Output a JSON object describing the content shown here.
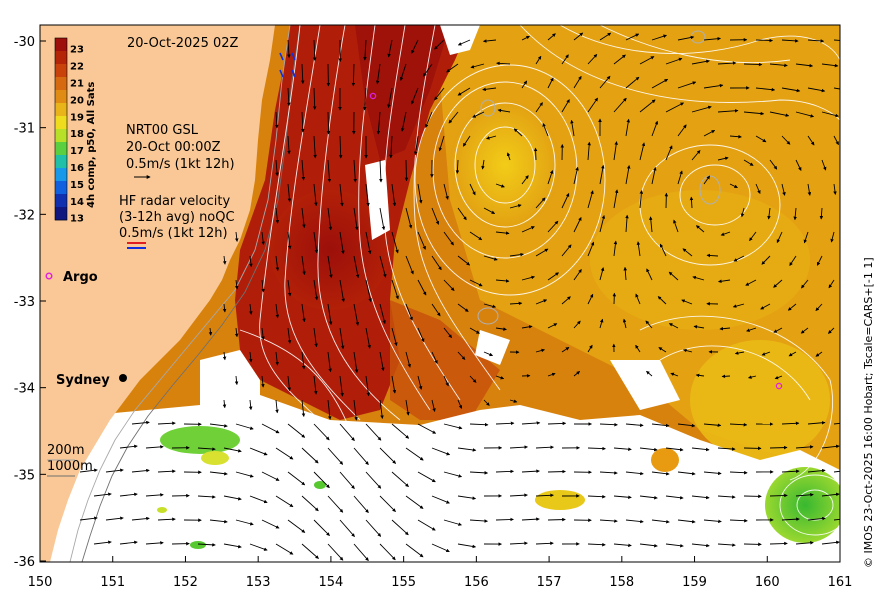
{
  "map": {
    "date_label": "20-Oct-2025 02Z",
    "colorbar": {
      "title": "4h comp, p50, All Sats",
      "ticks": [
        "23",
        "22",
        "21",
        "20",
        "19",
        "18",
        "17",
        "16",
        "15",
        "14",
        "13"
      ],
      "colors": [
        "#9c0f0a",
        "#b42508",
        "#c8420a",
        "#d66a10",
        "#e08c14",
        "#e8b41a",
        "#f0dc1e",
        "#b8e028",
        "#5ad040",
        "#20c0a8",
        "#1898e8",
        "#1060e0",
        "#1030b0",
        "#101880"
      ]
    },
    "gsl": {
      "line1": "NRT00 GSL",
      "line2": "20-Oct 00:00Z",
      "line3": "0.5m/s (1kt 12h)"
    },
    "hf_radar": {
      "line1": "HF radar velocity",
      "line2": "(3-12h avg) noQC",
      "line3": "0.5m/s (1kt 12h)"
    },
    "argo_label": "Argo",
    "sydney_label": "Sydney",
    "depth_200": "200m",
    "depth_1000": "1000m",
    "x_ticks": [
      "150",
      "151",
      "152",
      "153",
      "154",
      "155",
      "156",
      "157",
      "158",
      "159",
      "160",
      "161"
    ],
    "y_ticks": [
      "-30",
      "-31",
      "-32",
      "-33",
      "-34",
      "-35",
      "-36"
    ],
    "credit": "© IMOS 23-Oct-2025 16:00 Hobart; Tscale=CARS+[-1 1]",
    "colors": {
      "land": "#f9c896",
      "sst_warm": "#a8140c",
      "sst_mid": "#d2780e",
      "sst_cool": "#e8aa10",
      "sst_cold": "#f0c814",
      "sst_green": "#58c830",
      "argo": "#e020e0"
    }
  }
}
